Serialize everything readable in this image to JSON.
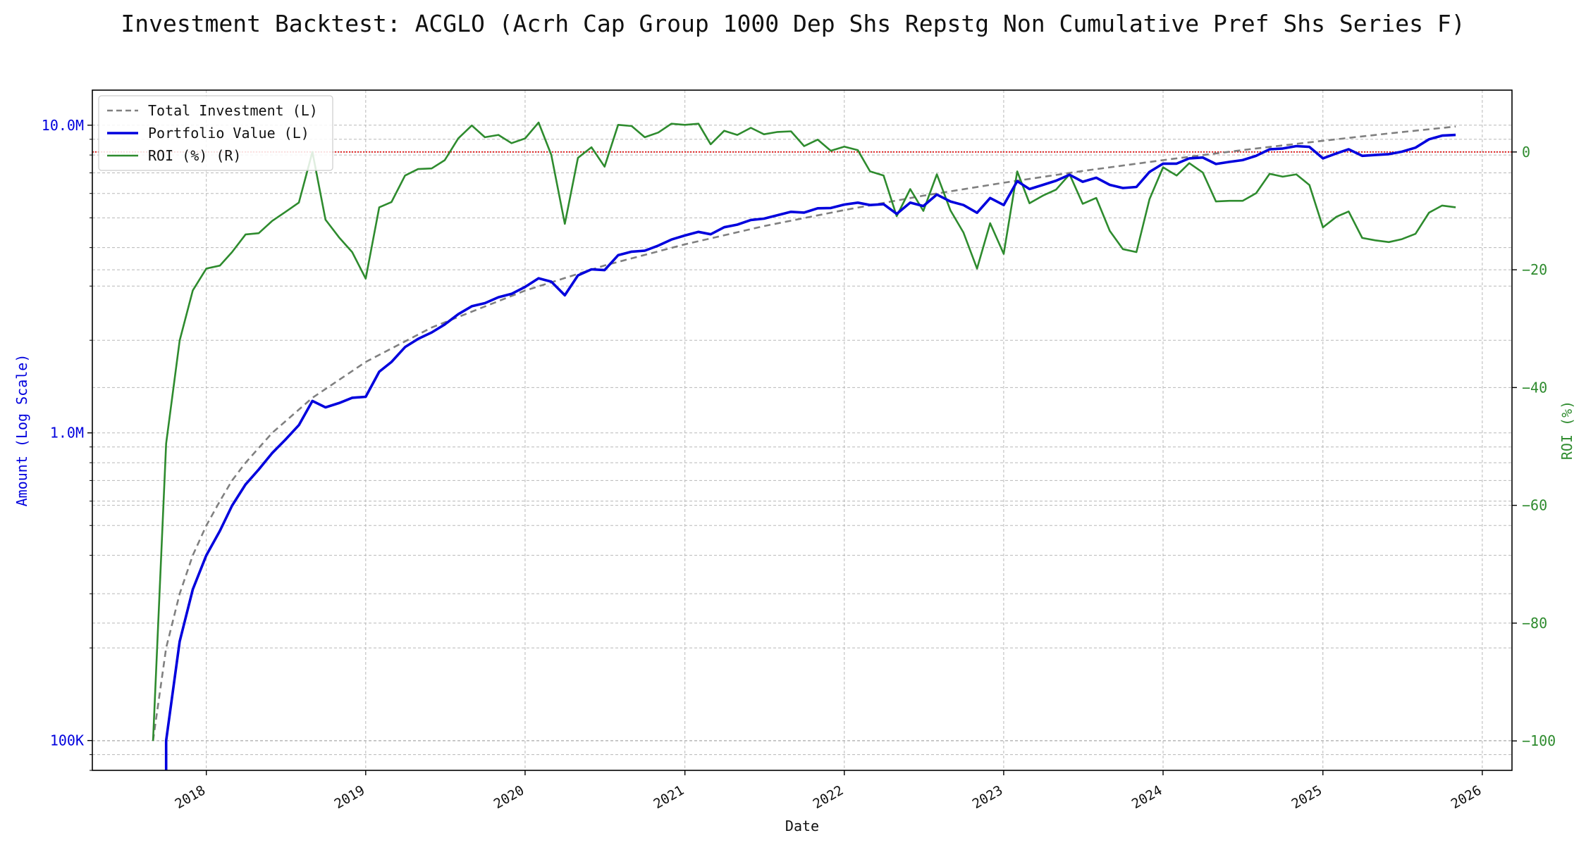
{
  "colors": {
    "portfolio": "#0000dd",
    "investment": "#808080",
    "roi": "#2e8b2e",
    "zero_line": "#dd0000",
    "grid": "#b8b8b8"
  },
  "chart_data": {
    "type": "line",
    "title": "Investment Backtest: ACGLO (Acrh Cap Group 1000 Dep Shs Repstg Non Cumulative Pref Shs Series F)",
    "xlabel": "Date",
    "ylabel_left": "Amount (Log Scale)",
    "ylabel_right": "ROI (%)",
    "left_scale": "log",
    "ylim_left": [
      80000,
      13000000
    ],
    "ylim_right": [
      -105,
      10.5
    ],
    "xlim": [
      "2017-04-15",
      "2026-03-10"
    ],
    "grid": true,
    "legend_position": "top-left",
    "left_ticks": [
      {
        "value": 100000,
        "label": "100K"
      },
      {
        "value": 1000000,
        "label": "1.0M"
      },
      {
        "value": 10000000,
        "label": "10.0M"
      }
    ],
    "right_ticks": [
      0,
      -20,
      -40,
      -60,
      -80,
      -100
    ],
    "x_ticks": [
      "2018",
      "2019",
      "2020",
      "2021",
      "2022",
      "2023",
      "2024",
      "2025",
      "2026"
    ],
    "reference_line": {
      "axis": "right",
      "value": 0,
      "style": "dotted"
    },
    "series": [
      {
        "name": "Total Investment (L)",
        "axis": "left",
        "style": "dashed",
        "points": [
          [
            "2017-09-01",
            100000
          ],
          [
            "2017-10-01",
            200000
          ],
          [
            "2017-11-01",
            300000
          ],
          [
            "2017-12-01",
            400000
          ],
          [
            "2018-01-01",
            500000
          ],
          [
            "2018-02-01",
            600000
          ],
          [
            "2018-03-01",
            700000
          ],
          [
            "2018-04-01",
            800000
          ],
          [
            "2018-06-01",
            1000000
          ],
          [
            "2018-09-01",
            1300000
          ],
          [
            "2019-01-01",
            1700000
          ],
          [
            "2019-06-01",
            2200000
          ],
          [
            "2020-01-01",
            2900000
          ],
          [
            "2020-07-01",
            3500000
          ],
          [
            "2021-01-01",
            4100000
          ],
          [
            "2021-07-01",
            4700000
          ],
          [
            "2022-01-01",
            5300000
          ],
          [
            "2022-07-01",
            5900000
          ],
          [
            "2023-01-01",
            6500000
          ],
          [
            "2023-07-01",
            7100000
          ],
          [
            "2024-01-01",
            7700000
          ],
          [
            "2024-07-01",
            8300000
          ],
          [
            "2025-01-01",
            8900000
          ],
          [
            "2025-06-01",
            9400000
          ],
          [
            "2025-11-01",
            9900000
          ]
        ]
      },
      {
        "name": "Portfolio Value (L)",
        "axis": "left",
        "style": "solid",
        "points": [
          [
            "2017-10-01",
            60000
          ],
          [
            "2017-10-01",
            100000
          ],
          [
            "2017-11-01",
            210000
          ],
          [
            "2017-12-01",
            310000
          ],
          [
            "2018-01-01",
            400000
          ],
          [
            "2018-02-01",
            480000
          ],
          [
            "2018-03-01",
            580000
          ],
          [
            "2018-04-01",
            680000
          ],
          [
            "2018-05-01",
            760000
          ],
          [
            "2018-06-01",
            860000
          ],
          [
            "2018-07-01",
            950000
          ],
          [
            "2018-08-01",
            1060000
          ],
          [
            "2018-09-01",
            1270000
          ],
          [
            "2018-10-01",
            1210000
          ],
          [
            "2018-11-01",
            1250000
          ],
          [
            "2018-12-01",
            1300000
          ],
          [
            "2019-01-01",
            1310000
          ],
          [
            "2019-02-01",
            1580000
          ],
          [
            "2019-03-01",
            1700000
          ],
          [
            "2019-04-01",
            1900000
          ],
          [
            "2019-05-01",
            2020000
          ],
          [
            "2019-06-01",
            2120000
          ],
          [
            "2019-07-01",
            2250000
          ],
          [
            "2019-08-01",
            2430000
          ],
          [
            "2019-09-01",
            2580000
          ],
          [
            "2019-10-01",
            2640000
          ],
          [
            "2019-11-01",
            2760000
          ],
          [
            "2019-12-01",
            2830000
          ],
          [
            "2020-01-01",
            2980000
          ],
          [
            "2020-02-01",
            3180000
          ],
          [
            "2020-03-01",
            3100000
          ],
          [
            "2020-04-01",
            2800000
          ],
          [
            "2020-05-01",
            3250000
          ],
          [
            "2020-06-01",
            3400000
          ],
          [
            "2020-07-01",
            3380000
          ],
          [
            "2020-08-01",
            3780000
          ],
          [
            "2020-09-01",
            3880000
          ],
          [
            "2020-10-01",
            3910000
          ],
          [
            "2020-11-01",
            4060000
          ],
          [
            "2020-12-01",
            4250000
          ],
          [
            "2021-01-01",
            4380000
          ],
          [
            "2021-02-01",
            4500000
          ],
          [
            "2021-03-01",
            4420000
          ],
          [
            "2021-04-01",
            4660000
          ],
          [
            "2021-05-01",
            4750000
          ],
          [
            "2021-06-01",
            4920000
          ],
          [
            "2021-07-01",
            4970000
          ],
          [
            "2021-08-01",
            5100000
          ],
          [
            "2021-09-01",
            5230000
          ],
          [
            "2021-10-01",
            5200000
          ],
          [
            "2021-11-01",
            5370000
          ],
          [
            "2021-12-01",
            5380000
          ],
          [
            "2022-01-01",
            5520000
          ],
          [
            "2022-02-01",
            5600000
          ],
          [
            "2022-03-01",
            5500000
          ],
          [
            "2022-04-01",
            5540000
          ],
          [
            "2022-05-01",
            5150000
          ],
          [
            "2022-06-01",
            5600000
          ],
          [
            "2022-07-01",
            5460000
          ],
          [
            "2022-08-01",
            5950000
          ],
          [
            "2022-09-01",
            5650000
          ],
          [
            "2022-10-01",
            5500000
          ],
          [
            "2022-11-01",
            5190000
          ],
          [
            "2022-12-01",
            5800000
          ],
          [
            "2023-01-01",
            5500000
          ],
          [
            "2023-02-01",
            6580000
          ],
          [
            "2023-03-01",
            6200000
          ],
          [
            "2023-04-01",
            6400000
          ],
          [
            "2023-05-01",
            6600000
          ],
          [
            "2023-06-01",
            6900000
          ],
          [
            "2023-07-01",
            6550000
          ],
          [
            "2023-08-01",
            6750000
          ],
          [
            "2023-09-01",
            6400000
          ],
          [
            "2023-10-01",
            6250000
          ],
          [
            "2023-11-01",
            6300000
          ],
          [
            "2023-12-01",
            7050000
          ],
          [
            "2024-01-01",
            7500000
          ],
          [
            "2024-02-01",
            7500000
          ],
          [
            "2024-03-01",
            7800000
          ],
          [
            "2024-04-01",
            7850000
          ],
          [
            "2024-05-01",
            7480000
          ],
          [
            "2024-06-01",
            7600000
          ],
          [
            "2024-07-01",
            7700000
          ],
          [
            "2024-08-01",
            7950000
          ],
          [
            "2024-09-01",
            8350000
          ],
          [
            "2024-10-01",
            8400000
          ],
          [
            "2024-11-01",
            8550000
          ],
          [
            "2024-12-01",
            8500000
          ],
          [
            "2025-01-01",
            7800000
          ],
          [
            "2025-02-01",
            8100000
          ],
          [
            "2025-03-01",
            8350000
          ],
          [
            "2025-04-01",
            7950000
          ],
          [
            "2025-05-01",
            8000000
          ],
          [
            "2025-06-01",
            8050000
          ],
          [
            "2025-07-01",
            8200000
          ],
          [
            "2025-08-01",
            8450000
          ],
          [
            "2025-09-01",
            9000000
          ],
          [
            "2025-10-01",
            9250000
          ],
          [
            "2025-11-01",
            9300000
          ]
        ]
      },
      {
        "name": "ROI (%) (R)",
        "axis": "right",
        "style": "solid",
        "points": [
          [
            "2017-09-01",
            -100
          ],
          [
            "2017-10-01",
            -49.5
          ],
          [
            "2017-11-01",
            -32
          ],
          [
            "2017-12-01",
            -23.5
          ],
          [
            "2018-01-01",
            -19.8
          ],
          [
            "2018-02-01",
            -19.3
          ],
          [
            "2018-03-01",
            -17
          ],
          [
            "2018-04-01",
            -14
          ],
          [
            "2018-05-01",
            -13.8
          ],
          [
            "2018-06-01",
            -11.7
          ],
          [
            "2018-07-01",
            -10.2
          ],
          [
            "2018-08-01",
            -8.6
          ],
          [
            "2018-09-01",
            0
          ],
          [
            "2018-10-01",
            -11.5
          ],
          [
            "2018-11-01",
            -14.5
          ],
          [
            "2018-12-01",
            -17
          ],
          [
            "2019-01-01",
            -21.5
          ],
          [
            "2019-02-01",
            -9.4
          ],
          [
            "2019-03-01",
            -8.5
          ],
          [
            "2019-04-01",
            -4
          ],
          [
            "2019-05-01",
            -2.9
          ],
          [
            "2019-06-01",
            -2.8
          ],
          [
            "2019-07-01",
            -1.4
          ],
          [
            "2019-08-01",
            2.3
          ],
          [
            "2019-09-01",
            4.5
          ],
          [
            "2019-10-01",
            2.5
          ],
          [
            "2019-11-01",
            2.9
          ],
          [
            "2019-12-01",
            1.5
          ],
          [
            "2020-01-01",
            2.3
          ],
          [
            "2020-02-01",
            5
          ],
          [
            "2020-03-01",
            -0.5
          ],
          [
            "2020-04-01",
            -12.2
          ],
          [
            "2020-05-01",
            -1
          ],
          [
            "2020-06-01",
            0.8
          ],
          [
            "2020-07-01",
            -2.5
          ],
          [
            "2020-08-01",
            4.6
          ],
          [
            "2020-09-01",
            4.4
          ],
          [
            "2020-10-01",
            2.5
          ],
          [
            "2020-11-01",
            3.3
          ],
          [
            "2020-12-01",
            4.8
          ],
          [
            "2021-01-01",
            4.6
          ],
          [
            "2021-02-01",
            4.8
          ],
          [
            "2021-03-01",
            1.3
          ],
          [
            "2021-04-01",
            3.6
          ],
          [
            "2021-05-01",
            2.9
          ],
          [
            "2021-06-01",
            4.1
          ],
          [
            "2021-07-01",
            3
          ],
          [
            "2021-08-01",
            3.4
          ],
          [
            "2021-09-01",
            3.5
          ],
          [
            "2021-10-01",
            1
          ],
          [
            "2021-11-01",
            2.1
          ],
          [
            "2021-12-01",
            0.2
          ],
          [
            "2022-01-01",
            0.9
          ],
          [
            "2022-02-01",
            0.3
          ],
          [
            "2022-03-01",
            -3.3
          ],
          [
            "2022-04-01",
            -4
          ],
          [
            "2022-05-01",
            -10.9
          ],
          [
            "2022-06-01",
            -6.3
          ],
          [
            "2022-07-01",
            -10
          ],
          [
            "2022-08-01",
            -3.8
          ],
          [
            "2022-09-01",
            -9.9
          ],
          [
            "2022-10-01",
            -13.7
          ],
          [
            "2022-11-01",
            -19.8
          ],
          [
            "2022-12-01",
            -12.1
          ],
          [
            "2023-01-01",
            -17.3
          ],
          [
            "2023-02-01",
            -3.3
          ],
          [
            "2023-03-01",
            -8.7
          ],
          [
            "2023-04-01",
            -7.4
          ],
          [
            "2023-05-01",
            -6.4
          ],
          [
            "2023-06-01",
            -3.8
          ],
          [
            "2023-07-01",
            -8.8
          ],
          [
            "2023-08-01",
            -7.8
          ],
          [
            "2023-09-01",
            -13.4
          ],
          [
            "2023-10-01",
            -16.5
          ],
          [
            "2023-11-01",
            -17
          ],
          [
            "2023-12-01",
            -8
          ],
          [
            "2024-01-01",
            -2.6
          ],
          [
            "2024-02-01",
            -4
          ],
          [
            "2024-03-01",
            -1.9
          ],
          [
            "2024-04-01",
            -3.5
          ],
          [
            "2024-05-01",
            -8.4
          ],
          [
            "2024-06-01",
            -8.3
          ],
          [
            "2024-07-01",
            -8.3
          ],
          [
            "2024-08-01",
            -7
          ],
          [
            "2024-09-01",
            -3.7
          ],
          [
            "2024-10-01",
            -4.2
          ],
          [
            "2024-11-01",
            -3.8
          ],
          [
            "2024-12-01",
            -5.6
          ],
          [
            "2025-01-01",
            -12.8
          ],
          [
            "2025-02-01",
            -11
          ],
          [
            "2025-03-01",
            -10.1
          ],
          [
            "2025-04-01",
            -14.6
          ],
          [
            "2025-05-01",
            -15
          ],
          [
            "2025-06-01",
            -15.3
          ],
          [
            "2025-07-01",
            -14.8
          ],
          [
            "2025-08-01",
            -13.9
          ],
          [
            "2025-09-01",
            -10.3
          ],
          [
            "2025-10-01",
            -9.1
          ],
          [
            "2025-11-01",
            -9.4
          ]
        ]
      }
    ]
  }
}
